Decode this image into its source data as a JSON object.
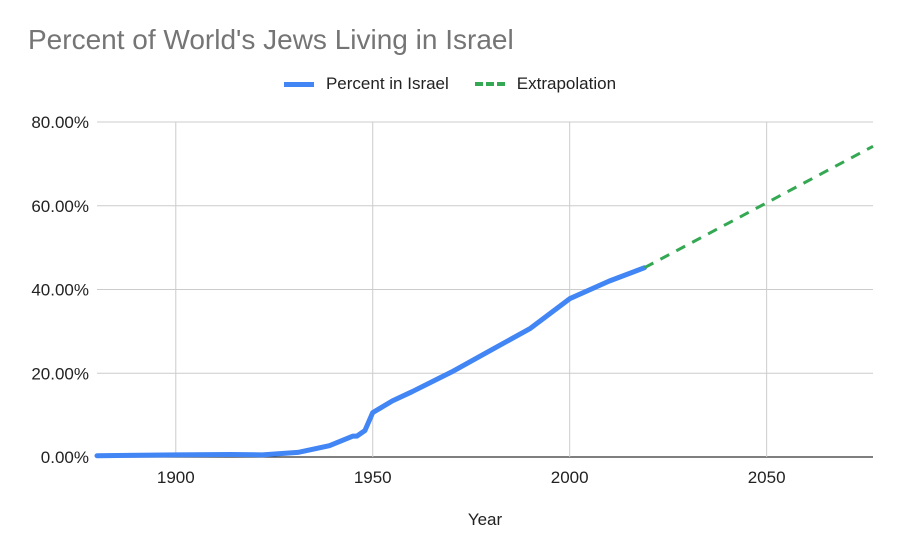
{
  "chart_data": {
    "type": "line",
    "title": "Percent of World's Jews Living in Israel",
    "xlabel": "Year",
    "ylabel": "",
    "xlim": [
      1880,
      2077
    ],
    "ylim": [
      0,
      80
    ],
    "x_ticks": [
      1900,
      1950,
      2000,
      2050
    ],
    "y_ticks": [
      0,
      20,
      40,
      60,
      80
    ],
    "y_tick_labels": [
      "0.00%",
      "20.00%",
      "40.00%",
      "60.00%",
      "80.00%"
    ],
    "grid": true,
    "legend_position": "top-center",
    "series": [
      {
        "name": "Percent in Israel",
        "color": "#4285f4",
        "style": "solid",
        "points": [
          [
            1880,
            0.3
          ],
          [
            1900,
            0.5
          ],
          [
            1914,
            0.6
          ],
          [
            1922,
            0.5
          ],
          [
            1931,
            1.1
          ],
          [
            1939,
            2.7
          ],
          [
            1945,
            5.0
          ],
          [
            1946,
            5.0
          ],
          [
            1948,
            6.3
          ],
          [
            1950,
            10.6
          ],
          [
            1955,
            13.4
          ],
          [
            1960,
            15.6
          ],
          [
            1970,
            20.3
          ],
          [
            1980,
            25.5
          ],
          [
            1990,
            30.7
          ],
          [
            2000,
            37.8
          ],
          [
            2010,
            42.0
          ],
          [
            2019,
            45.2
          ]
        ]
      },
      {
        "name": "Extrapolation",
        "color": "#34a853",
        "style": "dashed",
        "points": [
          [
            2019,
            45.2
          ],
          [
            2077,
            74.2
          ]
        ]
      }
    ]
  }
}
